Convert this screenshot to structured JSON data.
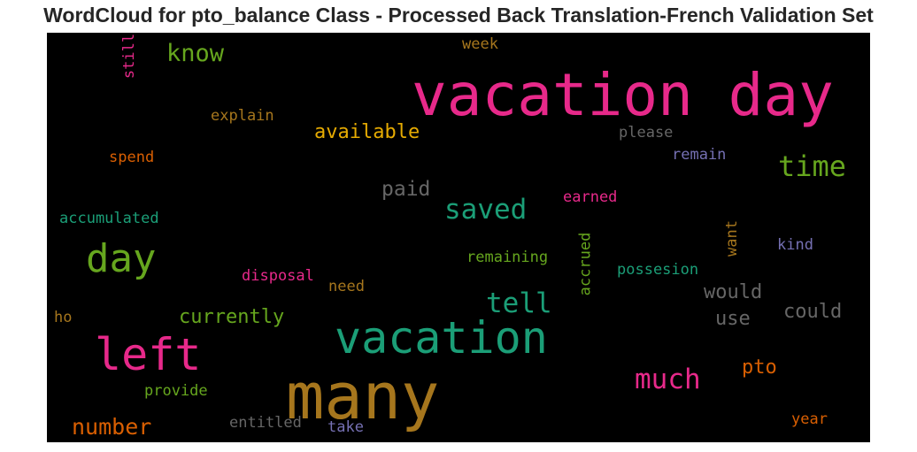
{
  "title": "WordCloud for pto_balance Class - Processed Back Translation-French Validation Set",
  "words": {
    "vacation_day": {
      "text": "vacation day",
      "color": "#e7298a"
    },
    "many": {
      "text": "many",
      "color": "#a6761d"
    },
    "vacation": {
      "text": "vacation",
      "color": "#1b9e77"
    },
    "left": {
      "text": "left",
      "color": "#e7298a"
    },
    "day": {
      "text": "day",
      "color": "#66a61e"
    },
    "time": {
      "text": "time",
      "color": "#66a61e"
    },
    "saved": {
      "text": "saved",
      "color": "#1b9e77"
    },
    "tell": {
      "text": "tell",
      "color": "#1b9e77"
    },
    "much": {
      "text": "much",
      "color": "#e7298a"
    },
    "know": {
      "text": "know",
      "color": "#66a61e"
    },
    "available": {
      "text": "available",
      "color": "#e6ab02"
    },
    "number": {
      "text": "number",
      "color": "#d95f02"
    },
    "currently": {
      "text": "currently",
      "color": "#66a61e"
    },
    "paid": {
      "text": "paid",
      "color": "#666666"
    },
    "would": {
      "text": "would",
      "color": "#666666"
    },
    "use": {
      "text": "use",
      "color": "#666666"
    },
    "could": {
      "text": "could",
      "color": "#666666"
    },
    "pto": {
      "text": "pto",
      "color": "#d95f02"
    },
    "still": {
      "text": "still",
      "color": "#e7298a"
    },
    "week": {
      "text": "week",
      "color": "#a6761d"
    },
    "explain": {
      "text": "explain",
      "color": "#a6761d"
    },
    "please": {
      "text": "please",
      "color": "#666666"
    },
    "remain": {
      "text": "remain",
      "color": "#7570b3"
    },
    "spend": {
      "text": "spend",
      "color": "#d95f02"
    },
    "accumulated": {
      "text": "accumulated",
      "color": "#1b9e77"
    },
    "earned": {
      "text": "earned",
      "color": "#e7298a"
    },
    "want": {
      "text": "want",
      "color": "#a6761d"
    },
    "kind": {
      "text": "kind",
      "color": "#7570b3"
    },
    "remaining": {
      "text": "remaining",
      "color": "#66a61e"
    },
    "accrued": {
      "text": "accrued",
      "color": "#66a61e"
    },
    "possesion": {
      "text": "possesion",
      "color": "#1b9e77"
    },
    "disposal": {
      "text": "disposal",
      "color": "#e7298a"
    },
    "need": {
      "text": "need",
      "color": "#a6761d"
    },
    "ho": {
      "text": "ho",
      "color": "#a6761d"
    },
    "provide": {
      "text": "provide",
      "color": "#66a61e"
    },
    "entitled": {
      "text": "entitled",
      "color": "#666666"
    },
    "take": {
      "text": "take",
      "color": "#7570b3"
    },
    "year": {
      "text": "year",
      "color": "#d95f02"
    }
  }
}
